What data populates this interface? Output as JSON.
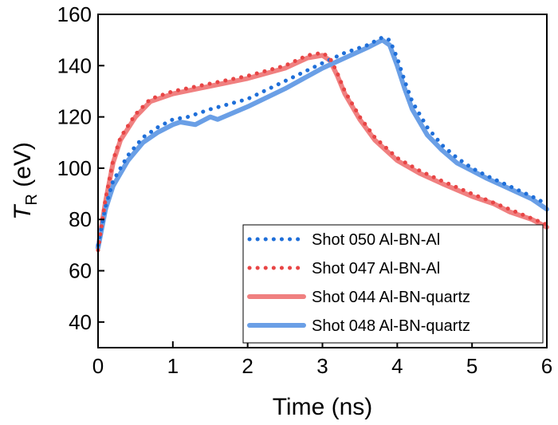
{
  "chart_data": {
    "type": "line",
    "xlabel": "Time (ns)",
    "ylabel_main": "T",
    "ylabel_sub": "R",
    "ylabel_unit": " (eV)",
    "xlim": [
      0,
      6
    ],
    "ylim": [
      30,
      160
    ],
    "xticks": [
      0,
      1,
      2,
      3,
      4,
      5,
      6
    ],
    "yticks": [
      40,
      60,
      80,
      100,
      120,
      140,
      160
    ],
    "grid": false,
    "legend_position": "bottom-right",
    "series": [
      {
        "name": "Shot 050 Al-BN-Al",
        "color": "#1f6fd9",
        "style": "dotted",
        "points": [
          [
            0,
            70
          ],
          [
            0.1,
            85
          ],
          [
            0.2,
            95
          ],
          [
            0.4,
            105
          ],
          [
            0.6,
            112
          ],
          [
            0.8,
            116
          ],
          [
            1.0,
            119
          ],
          [
            1.2,
            120
          ],
          [
            1.5,
            123
          ],
          [
            2.0,
            127
          ],
          [
            2.5,
            134
          ],
          [
            3.0,
            141
          ],
          [
            3.3,
            145
          ],
          [
            3.6,
            148
          ],
          [
            3.8,
            151
          ],
          [
            3.9,
            150
          ],
          [
            4.0,
            143
          ],
          [
            4.1,
            134
          ],
          [
            4.2,
            126
          ],
          [
            4.4,
            116
          ],
          [
            4.6,
            109
          ],
          [
            4.8,
            104
          ],
          [
            5.0,
            100
          ],
          [
            5.2,
            97
          ],
          [
            5.5,
            93
          ],
          [
            5.8,
            89
          ],
          [
            6.0,
            86
          ]
        ]
      },
      {
        "name": "Shot 047 Al-BN-Al",
        "color": "#e84545",
        "style": "dotted",
        "points": [
          [
            0,
            68
          ],
          [
            0.1,
            88
          ],
          [
            0.2,
            103
          ],
          [
            0.3,
            112
          ],
          [
            0.5,
            121
          ],
          [
            0.7,
            127
          ],
          [
            1.0,
            130
          ],
          [
            1.5,
            133
          ],
          [
            2.0,
            136
          ],
          [
            2.5,
            140
          ],
          [
            2.8,
            144
          ],
          [
            3.0,
            145
          ],
          [
            3.1,
            143
          ],
          [
            3.2,
            137
          ],
          [
            3.3,
            130
          ],
          [
            3.5,
            120
          ],
          [
            3.7,
            112
          ],
          [
            4.0,
            104
          ],
          [
            4.3,
            99
          ],
          [
            4.6,
            95
          ],
          [
            5.0,
            90
          ],
          [
            5.5,
            84
          ],
          [
            6.0,
            78
          ]
        ]
      },
      {
        "name": "Shot 044 Al-BN-quartz",
        "color": "#f08080",
        "style": "solid",
        "points": [
          [
            0,
            69
          ],
          [
            0.1,
            87
          ],
          [
            0.2,
            102
          ],
          [
            0.3,
            111
          ],
          [
            0.5,
            120
          ],
          [
            0.7,
            126
          ],
          [
            1.0,
            129
          ],
          [
            1.5,
            132
          ],
          [
            2.0,
            135
          ],
          [
            2.5,
            139
          ],
          [
            2.8,
            143
          ],
          [
            3.0,
            144
          ],
          [
            3.1,
            142
          ],
          [
            3.2,
            136
          ],
          [
            3.3,
            129
          ],
          [
            3.5,
            119
          ],
          [
            3.7,
            111
          ],
          [
            4.0,
            103
          ],
          [
            4.3,
            98
          ],
          [
            4.6,
            94
          ],
          [
            5.0,
            89
          ],
          [
            5.3,
            86
          ],
          [
            5.5,
            83
          ],
          [
            5.8,
            80
          ],
          [
            6.0,
            77
          ]
        ]
      },
      {
        "name": "Shot 048 Al-BN-quartz",
        "color": "#6a9fe6",
        "style": "solid",
        "points": [
          [
            0,
            69
          ],
          [
            0.1,
            84
          ],
          [
            0.2,
            93
          ],
          [
            0.4,
            103
          ],
          [
            0.6,
            110
          ],
          [
            0.8,
            114
          ],
          [
            1.0,
            117
          ],
          [
            1.1,
            118
          ],
          [
            1.3,
            117
          ],
          [
            1.5,
            120
          ],
          [
            1.6,
            119
          ],
          [
            2.0,
            124
          ],
          [
            2.5,
            131
          ],
          [
            3.0,
            139
          ],
          [
            3.3,
            143
          ],
          [
            3.6,
            147
          ],
          [
            3.8,
            150
          ],
          [
            3.9,
            148
          ],
          [
            4.0,
            140
          ],
          [
            4.1,
            131
          ],
          [
            4.2,
            123
          ],
          [
            4.4,
            113
          ],
          [
            4.6,
            107
          ],
          [
            4.8,
            102
          ],
          [
            5.0,
            99
          ],
          [
            5.2,
            96
          ],
          [
            5.5,
            92
          ],
          [
            5.8,
            88
          ],
          [
            6.0,
            84
          ]
        ]
      }
    ]
  }
}
